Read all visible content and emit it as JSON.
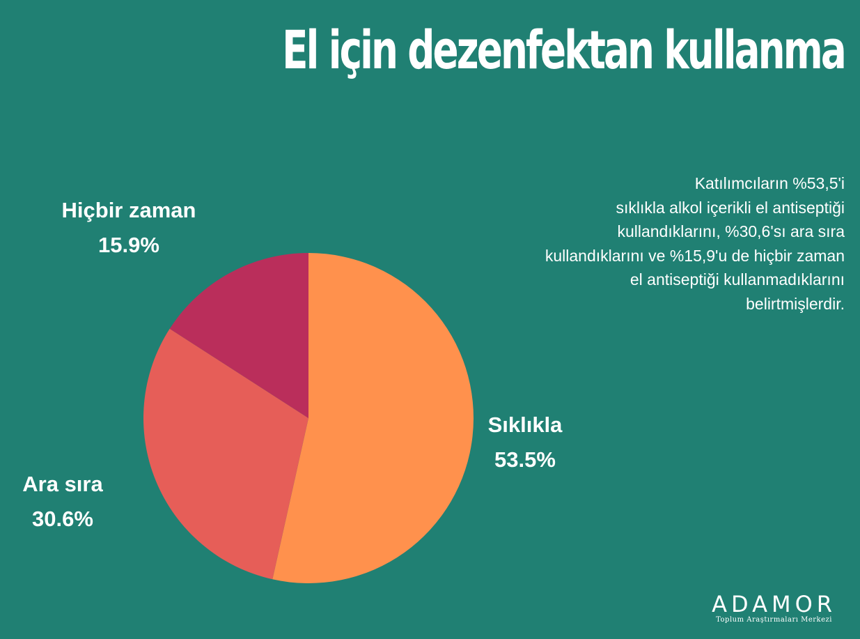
{
  "chart_data": {
    "type": "pie",
    "title": "El için dezenfektan kullanma",
    "slices": [
      {
        "label": "Sıklıkla",
        "value": 53.5,
        "value_label": "53.5%",
        "color": "#FF914D"
      },
      {
        "label": "Ara sıra",
        "value": 30.6,
        "value_label": "30.6%",
        "color": "#E65E58"
      },
      {
        "label": "Hiçbir zaman",
        "value": 15.9,
        "value_label": "15.9%",
        "color": "#BA2E5B"
      }
    ]
  },
  "description": {
    "lines": [
      "Katılımcıların %53,5'i",
      "sıklıkla alkol içerikli el antiseptiği",
      "kullandıklarını, %30,6'sı ara sıra",
      "kullandıklarını ve %15,9'u de hiçbir zaman",
      "el antiseptiği kullanmadıklarını",
      "belirtmişlerdir."
    ]
  },
  "logo": {
    "name": "ADAMOR",
    "subtitle": "Toplum Araştırmaları Merkezi"
  },
  "colors": {
    "background": "#208073",
    "text": "#FFFFFF"
  }
}
